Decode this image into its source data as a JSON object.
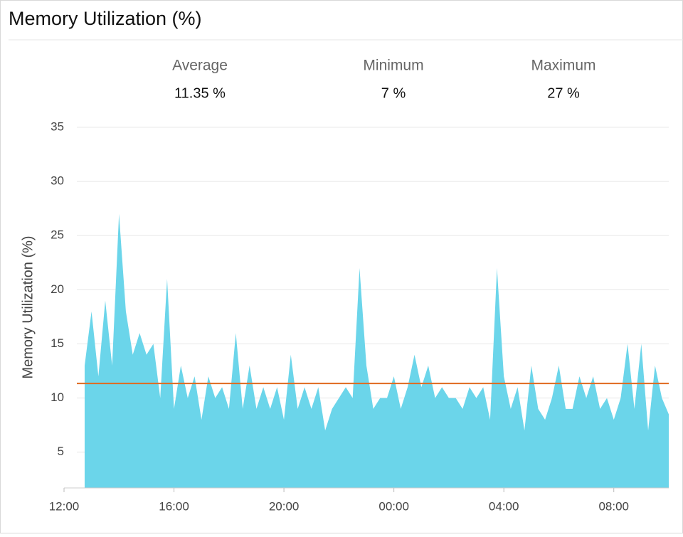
{
  "header": {
    "title": "Memory Utilization (%)"
  },
  "stats": [
    {
      "label": "Average",
      "value": "11.35 %"
    },
    {
      "label": "Minimum",
      "value": "7 %"
    },
    {
      "label": "Maximum",
      "value": "27 %"
    }
  ],
  "chart_data": {
    "type": "area",
    "y_label": "Memory Utilization (%)",
    "x": [
      "12:45",
      "13:00",
      "13:15",
      "13:30",
      "13:45",
      "14:00",
      "14:15",
      "14:30",
      "14:45",
      "15:00",
      "15:15",
      "15:30",
      "15:45",
      "16:00",
      "16:15",
      "16:30",
      "16:45",
      "17:00",
      "17:15",
      "17:30",
      "17:45",
      "18:00",
      "18:15",
      "18:30",
      "18:45",
      "19:00",
      "19:15",
      "19:30",
      "19:45",
      "20:00",
      "20:15",
      "20:30",
      "20:45",
      "21:00",
      "21:15",
      "21:30",
      "21:45",
      "22:00",
      "22:15",
      "22:30",
      "22:45",
      "23:00",
      "23:15",
      "23:30",
      "23:45",
      "00:00",
      "00:15",
      "00:30",
      "00:45",
      "01:00",
      "01:15",
      "01:30",
      "01:45",
      "02:00",
      "02:15",
      "02:30",
      "02:45",
      "03:00",
      "03:15",
      "03:30",
      "03:45",
      "04:00",
      "04:15",
      "04:30",
      "04:45",
      "05:00",
      "05:15",
      "05:30",
      "05:45",
      "06:00",
      "06:15",
      "06:30",
      "06:45",
      "07:00",
      "07:15",
      "07:30",
      "07:45",
      "08:00",
      "08:15",
      "08:30",
      "08:45",
      "09:00",
      "09:15",
      "09:30",
      "09:45",
      "10:00"
    ],
    "series": [
      {
        "color": "#6bd5ea",
        "values": [
          13,
          18,
          12,
          19,
          13,
          27,
          18,
          14,
          16,
          14,
          15,
          10,
          21,
          9,
          13,
          10,
          12,
          8,
          12,
          10,
          11,
          9,
          16,
          9,
          13,
          9,
          11,
          9,
          11,
          8,
          14,
          9,
          11,
          9,
          11,
          7,
          9,
          10,
          11,
          10,
          22,
          13,
          9,
          10,
          10,
          12,
          9,
          11,
          14,
          11,
          13,
          10,
          11,
          10,
          10,
          9,
          11,
          10,
          11,
          8,
          22,
          12,
          9,
          11,
          7,
          13,
          9,
          8,
          10,
          13,
          9,
          9,
          12,
          10,
          12,
          9,
          10,
          8,
          10,
          15,
          9,
          15,
          7,
          13,
          10,
          8.5
        ]
      }
    ],
    "reference_line": 11.35,
    "reference_color": "#e06a1f",
    "xlim": [
      "12:00",
      "10:00"
    ],
    "xticks": [
      "12:00",
      "16:00",
      "20:00",
      "00:00",
      "04:00",
      "08:00"
    ],
    "ylim": [
      1.7,
      35
    ],
    "yticks": [
      5,
      10,
      15,
      20,
      25,
      30,
      35
    ],
    "grid": true
  }
}
